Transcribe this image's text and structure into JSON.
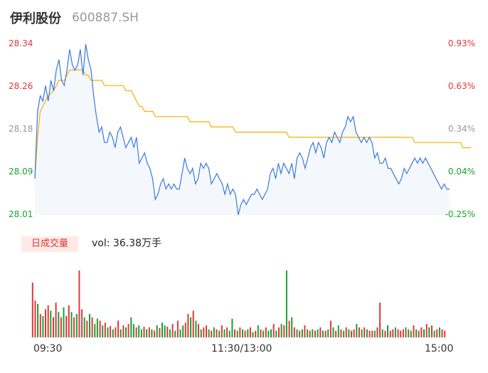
{
  "header": {
    "name": "伊利股份",
    "code": "600887.SH"
  },
  "price_axis": {
    "left_ticks": [
      "28.34",
      "28.26",
      "28.18",
      "28.09",
      "28.01"
    ],
    "right_ticks": [
      "0.93%",
      "0.63%",
      "0.34%",
      "0.04%",
      "-0.25%"
    ]
  },
  "volume_section": {
    "period_label": "日成交量",
    "volume_text": "vol: 36.38万手"
  },
  "time_axis": {
    "start": "09:30",
    "mid": "11:30/13:00",
    "end": "15:00"
  },
  "colors": {
    "price_line": "#3a78e0",
    "avg_line": "#f5b000",
    "up": "#e0373a",
    "down": "#1aa033",
    "area_fill": "#f4f8fd"
  },
  "chart_data": {
    "type": "line",
    "ylim": [
      28.01,
      28.34
    ],
    "pct_ylim": [
      -0.25,
      0.93
    ],
    "series": [
      {
        "values": [
          28.08,
          28.21,
          28.24,
          28.23,
          28.26,
          28.23,
          28.27,
          28.25,
          28.29,
          28.31,
          28.27,
          28.26,
          28.29,
          28.33,
          28.3,
          28.29,
          28.3,
          28.33,
          28.28,
          28.34,
          28.31,
          28.29,
          28.24,
          28.2,
          28.17,
          28.18,
          28.15,
          28.15,
          28.17,
          28.16,
          28.14,
          28.17,
          28.18,
          28.16,
          28.14,
          28.15,
          28.16,
          28.14,
          28.16,
          28.11,
          28.12,
          28.13,
          28.11,
          28.1,
          28.08,
          28.04,
          28.05,
          28.07,
          28.08,
          28.06,
          28.07,
          28.06,
          28.07,
          28.06,
          28.06,
          28.09,
          28.12,
          28.1,
          28.09,
          28.1,
          28.07,
          28.08,
          28.11,
          28.1,
          28.11,
          28.1,
          28.07,
          28.08,
          28.09,
          28.08,
          28.07,
          28.05,
          28.07,
          28.05,
          28.06,
          28.05,
          28.01,
          28.03,
          28.04,
          28.03,
          28.04,
          28.05,
          28.05,
          28.06,
          28.05,
          28.04,
          28.05,
          28.06,
          28.09,
          28.1,
          28.08,
          28.11,
          28.09,
          28.11,
          28.1,
          28.09,
          28.11,
          28.08,
          28.12,
          28.13,
          28.12,
          28.1,
          28.12,
          28.14,
          28.15,
          28.13,
          28.15,
          28.14,
          28.12,
          28.15,
          28.16,
          28.15,
          28.17,
          28.16,
          28.15,
          28.17,
          28.18,
          28.2,
          28.19,
          28.2,
          28.17,
          28.16,
          28.15,
          28.16,
          28.15,
          28.16,
          28.15,
          28.12,
          28.13,
          28.11,
          28.11,
          28.12,
          28.1,
          28.1,
          28.09,
          28.08,
          28.07,
          28.08,
          28.1,
          28.09,
          28.1,
          28.11,
          28.12,
          28.11,
          28.12,
          28.11,
          28.12,
          28.11,
          28.1,
          28.09,
          28.08,
          28.07,
          28.06,
          28.07,
          28.06,
          28.06
        ]
      },
      {
        "values": [
          28.08,
          28.16,
          28.21,
          28.22,
          28.23,
          28.24,
          28.245,
          28.25,
          28.26,
          28.27,
          28.27,
          28.27,
          28.28,
          28.29,
          28.29,
          28.29,
          28.29,
          28.29,
          28.29,
          28.28,
          28.28,
          28.27,
          28.27,
          28.27,
          28.27,
          28.27,
          28.26,
          28.26,
          28.26,
          28.26,
          28.26,
          28.26,
          28.26,
          28.26,
          28.25,
          28.25,
          28.25,
          28.24,
          28.23,
          28.22,
          28.22,
          28.21,
          28.21,
          28.21,
          28.21,
          28.2,
          28.2,
          28.2,
          28.2,
          28.2,
          28.2,
          28.2,
          28.2,
          28.2,
          28.2,
          28.2,
          28.2,
          28.2,
          28.19,
          28.19,
          28.19,
          28.19,
          28.19,
          28.19,
          28.19,
          28.19,
          28.18,
          28.18,
          28.18,
          28.18,
          28.18,
          28.18,
          28.18,
          28.18,
          28.18,
          28.17,
          28.17,
          28.17,
          28.17,
          28.17,
          28.17,
          28.17,
          28.17,
          28.17,
          28.17,
          28.17,
          28.17,
          28.17,
          28.17,
          28.17,
          28.17,
          28.17,
          28.17,
          28.17,
          28.17,
          28.16,
          28.16,
          28.16,
          28.16,
          28.16,
          28.16,
          28.16,
          28.16,
          28.16,
          28.16,
          28.16,
          28.16,
          28.16,
          28.16,
          28.16,
          28.16,
          28.16,
          28.16,
          28.16,
          28.16,
          28.16,
          28.16,
          28.16,
          28.16,
          28.16,
          28.16,
          28.16,
          28.16,
          28.16,
          28.16,
          28.16,
          28.16,
          28.16,
          28.16,
          28.16,
          28.16,
          28.16,
          28.16,
          28.16,
          28.16,
          28.16,
          28.16,
          28.16,
          28.16,
          28.16,
          28.16,
          28.16,
          28.15,
          28.15,
          28.15,
          28.15,
          28.15,
          28.15,
          28.15,
          28.15,
          28.15,
          28.15,
          28.15,
          28.15,
          28.15,
          28.15,
          28.15,
          28.15,
          28.15,
          28.15,
          28.14,
          28.14,
          28.14,
          28.14
        ]
      }
    ],
    "volume": {
      "values": [
        0.82,
        0.55,
        0.5,
        0.35,
        0.32,
        0.42,
        0.48,
        0.4,
        0.3,
        0.52,
        0.38,
        0.3,
        0.45,
        0.32,
        0.48,
        0.38,
        0.3,
        0.35,
        1.0,
        0.42,
        0.3,
        0.25,
        0.35,
        0.3,
        0.2,
        0.28,
        0.25,
        0.18,
        0.22,
        0.15,
        0.17,
        0.12,
        0.15,
        0.25,
        0.12,
        0.18,
        0.15,
        0.2,
        0.3,
        0.2,
        0.15,
        0.18,
        0.12,
        0.16,
        0.12,
        0.15,
        0.12,
        0.1,
        0.18,
        0.14,
        0.22,
        0.18,
        0.16,
        0.12,
        0.2,
        0.1,
        0.25,
        0.12,
        0.18,
        0.22,
        0.35,
        0.3,
        0.4,
        0.25,
        0.2,
        0.12,
        0.15,
        0.18,
        0.12,
        0.1,
        0.15,
        0.12,
        0.1,
        0.18,
        0.12,
        0.15,
        0.1,
        0.28,
        0.12,
        0.1,
        0.15,
        0.12,
        0.1,
        0.12,
        0.15,
        0.08,
        0.1,
        0.18,
        0.12,
        0.1,
        0.15,
        0.1,
        0.12,
        0.2,
        0.1,
        0.15,
        0.2,
        0.18,
        1.0,
        0.25,
        0.3,
        0.15,
        0.12,
        0.1,
        0.12,
        0.18,
        0.12,
        0.1,
        0.12,
        0.1,
        0.12,
        0.15,
        0.1,
        0.1,
        0.12,
        0.25,
        0.15,
        0.1,
        0.18,
        0.12,
        0.1,
        0.15,
        0.12,
        0.1,
        0.12,
        0.2,
        0.15,
        0.12,
        0.15,
        0.12,
        0.1,
        0.1,
        0.1,
        0.15,
        0.52,
        0.12,
        0.1,
        0.18,
        0.1,
        0.12,
        0.15,
        0.12,
        0.1,
        0.12,
        0.15,
        0.12,
        0.1,
        0.18,
        0.12,
        0.1,
        0.15,
        0.12,
        0.2,
        0.15,
        0.18,
        0.1,
        0.12,
        0.15,
        0.12,
        0.1
      ],
      "directions": [
        "u",
        "u",
        "d",
        "u",
        "d",
        "u",
        "u",
        "d",
        "u",
        "u",
        "d",
        "u",
        "d",
        "u",
        "u",
        "d",
        "u",
        "d",
        "u",
        "u",
        "d",
        "u",
        "d",
        "u",
        "d",
        "d",
        "u",
        "d",
        "u",
        "d",
        "u",
        "d",
        "u",
        "u",
        "d",
        "u",
        "d",
        "u",
        "d",
        "d",
        "u",
        "d",
        "d",
        "u",
        "d",
        "u",
        "d",
        "u",
        "d",
        "u",
        "d",
        "d",
        "u",
        "d",
        "u",
        "d",
        "u",
        "d",
        "d",
        "u",
        "u",
        "d",
        "u",
        "d",
        "u",
        "d",
        "u",
        "u",
        "d",
        "u",
        "d",
        "u",
        "d",
        "u",
        "d",
        "u",
        "d",
        "d",
        "u",
        "d",
        "u",
        "d",
        "u",
        "d",
        "u",
        "d",
        "u",
        "d",
        "u",
        "d",
        "u",
        "d",
        "d",
        "u",
        "d",
        "u",
        "d",
        "u",
        "d",
        "u",
        "d",
        "u",
        "d",
        "u",
        "d",
        "u",
        "d",
        "u",
        "d",
        "u",
        "d",
        "u",
        "d",
        "u",
        "d",
        "u",
        "d",
        "u",
        "d",
        "u",
        "d",
        "u",
        "d",
        "u",
        "u",
        "d",
        "u",
        "d",
        "u",
        "d",
        "u",
        "u",
        "d",
        "u",
        "u",
        "d",
        "u",
        "d",
        "u",
        "u",
        "d",
        "u",
        "u",
        "u",
        "d",
        "u",
        "d",
        "u",
        "d",
        "u",
        "u",
        "d",
        "u",
        "d",
        "u",
        "d",
        "u",
        "d",
        "u",
        "u"
      ]
    }
  }
}
